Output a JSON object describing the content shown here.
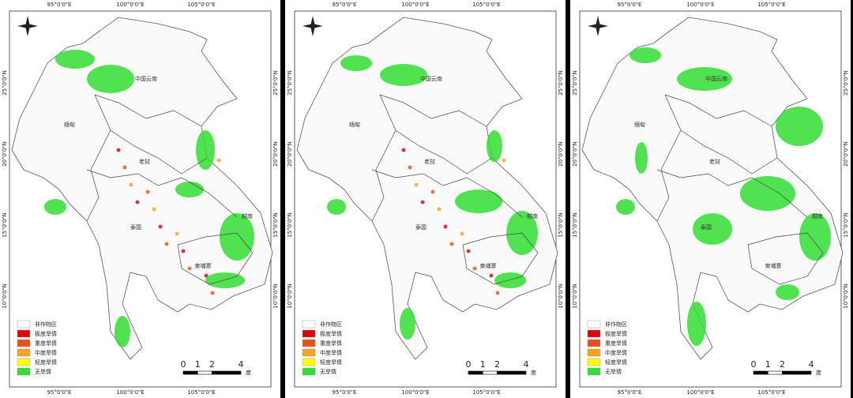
{
  "panels": [
    {
      "lon_labels": [
        "95°0'0\"E",
        "100°0'0\"E",
        "105°0'0\"E"
      ],
      "lat_labels": [
        "25°0'0\"N",
        "20°0'0\"N",
        "15°0'0\"N",
        "10°0'0\"N"
      ],
      "regions": [
        "中国云南",
        "缅甸",
        "老挝",
        "泰国",
        "越南",
        "柬埔寨"
      ],
      "legend": [
        {
          "label": "非作物区",
          "color": "#ffffff"
        },
        {
          "label": "极度旱情",
          "color": "#e00000"
        },
        {
          "label": "重度旱情",
          "color": "#e8501c"
        },
        {
          "label": "中度旱情",
          "color": "#f5a21e"
        },
        {
          "label": "轻度旱情",
          "color": "#ffff00"
        },
        {
          "label": "无旱情",
          "color": "#33dd33"
        }
      ],
      "scale": {
        "ticks": [
          0,
          1,
          2,
          4
        ],
        "unit": "度"
      }
    },
    {
      "lon_labels": [
        "95°0'0\"E",
        "100°0'0\"E",
        "105°0'0\"E"
      ],
      "lat_labels": [
        "25°0'0\"N",
        "20°0'0\"N",
        "15°0'0\"N",
        "10°0'0\"N"
      ],
      "regions": [
        "中国云南",
        "缅甸",
        "老挝",
        "泰国",
        "越南",
        "柬埔寨"
      ],
      "legend": [
        {
          "label": "非作物区",
          "color": "#ffffff"
        },
        {
          "label": "极度旱情",
          "color": "#e00000"
        },
        {
          "label": "重度旱情",
          "color": "#e8501c"
        },
        {
          "label": "中度旱情",
          "color": "#f5a21e"
        },
        {
          "label": "轻度旱情",
          "color": "#ffff00"
        },
        {
          "label": "无旱情",
          "color": "#33dd33"
        }
      ],
      "scale": {
        "ticks": [
          0,
          1,
          2,
          4
        ],
        "unit": "度"
      }
    },
    {
      "lon_labels": [
        "95°0'0\"E",
        "100°0'0\"E",
        "105°0'0\"E"
      ],
      "lat_labels": [
        "25°0'0\"N",
        "20°0'0\"N",
        "15°0'0\"N",
        "10°0'0\"N"
      ],
      "regions": [
        "中国云南",
        "缅甸",
        "老挝",
        "泰国",
        "越南",
        "柬埔寨"
      ],
      "legend": [
        {
          "label": "非作物区",
          "color": "#ffffff"
        },
        {
          "label": "极度旱情",
          "color": "#e00000"
        },
        {
          "label": "重度旱情",
          "color": "#e8501c"
        },
        {
          "label": "中度旱情",
          "color": "#f5a21e"
        },
        {
          "label": "轻度旱情",
          "color": "#ffff00"
        },
        {
          "label": "无旱情",
          "color": "#33dd33"
        }
      ],
      "scale": {
        "ticks": [
          0,
          1,
          2,
          4
        ],
        "unit": "度"
      }
    }
  ]
}
